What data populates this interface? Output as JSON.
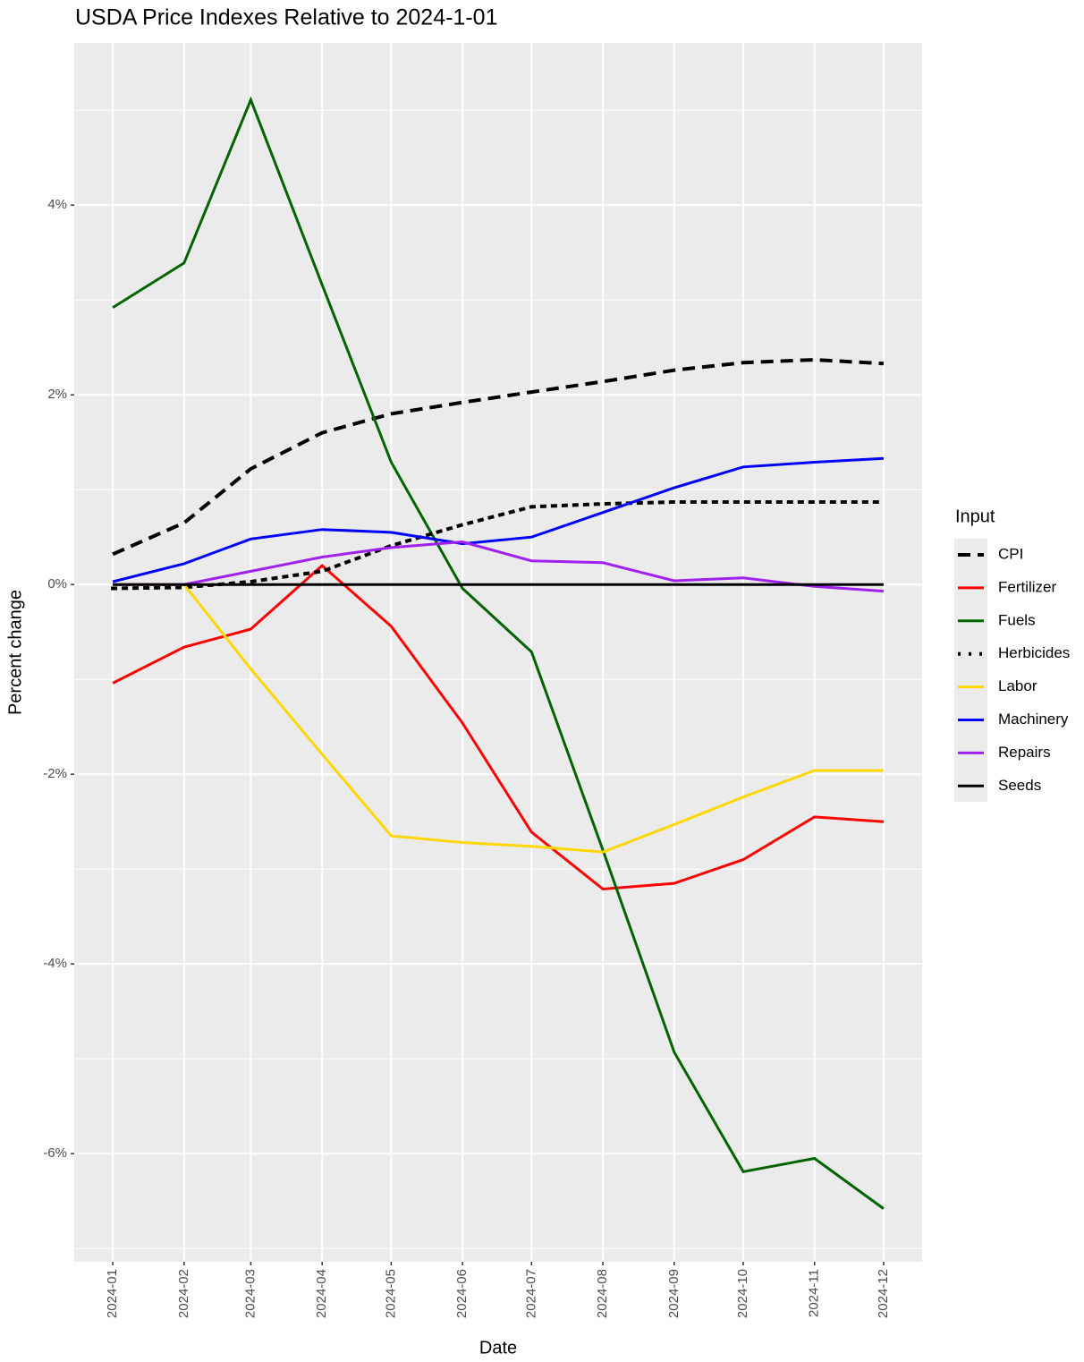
{
  "chart_data": {
    "type": "line",
    "title": "USDA Price Indexes Relative to  2024-1-01",
    "x_label": "Date",
    "y_label": "Percent change",
    "legend_title": "Input",
    "legend_position": "right",
    "grid": true,
    "x": [
      "2024-01",
      "2024-02",
      "2024-03",
      "2024-04",
      "2024-05",
      "2024-06",
      "2024-07",
      "2024-08",
      "2024-09",
      "2024-10",
      "2024-11",
      "2024-12"
    ],
    "ylim": [
      -7.14,
      5.71
    ],
    "yticks": [
      {
        "value": -6,
        "label": "-6%"
      },
      {
        "value": -4,
        "label": "-4%"
      },
      {
        "value": -2,
        "label": "-2%"
      },
      {
        "value": 0,
        "label": "0%"
      },
      {
        "value": 2,
        "label": "2%"
      },
      {
        "value": 4,
        "label": "4%"
      }
    ],
    "series": [
      {
        "name": "CPI",
        "color": "#000000",
        "dash": "dashed",
        "values": [
          0.32,
          0.65,
          1.22,
          1.6,
          1.8,
          1.92,
          2.03,
          2.14,
          2.26,
          2.34,
          2.37,
          2.33
        ]
      },
      {
        "name": "Fertilizer",
        "color": "#ff0000",
        "dash": "solid",
        "values": [
          -1.04,
          -0.66,
          -0.47,
          0.2,
          -0.44,
          -1.46,
          -2.61,
          -3.21,
          -3.15,
          -2.9,
          -2.45,
          -2.5
        ]
      },
      {
        "name": "Fuels",
        "color": "#006400",
        "dash": "solid",
        "values": [
          2.92,
          3.39,
          5.11,
          3.16,
          1.29,
          -0.04,
          -0.71,
          -2.8,
          -4.93,
          -6.19,
          -6.05,
          -6.58
        ]
      },
      {
        "name": "Herbicides",
        "color": "#000000",
        "dash": "dotted",
        "values": [
          -0.04,
          -0.03,
          0.03,
          0.14,
          0.41,
          0.63,
          0.82,
          0.85,
          0.87,
          0.87,
          0.87,
          0.87
        ]
      },
      {
        "name": "Labor",
        "color": "#ffd700",
        "dash": "solid",
        "values": [
          0,
          0,
          -0.89,
          -1.79,
          -2.65,
          -2.72,
          -2.76,
          -2.82,
          -2.53,
          -2.24,
          -1.96,
          -1.96
        ]
      },
      {
        "name": "Machinery",
        "color": "#0000ff",
        "dash": "solid",
        "values": [
          0.03,
          0.22,
          0.48,
          0.58,
          0.55,
          0.43,
          0.5,
          0.76,
          1.02,
          1.24,
          1.29,
          1.33
        ]
      },
      {
        "name": "Repairs",
        "color": "#a020f0",
        "dash": "solid",
        "values": [
          0,
          0,
          0.14,
          0.29,
          0.39,
          0.45,
          0.25,
          0.23,
          0.04,
          0.07,
          -0.02,
          -0.07
        ]
      },
      {
        "name": "Seeds",
        "color": "#000000",
        "dash": "solid",
        "values": [
          0,
          0,
          0,
          0,
          0,
          0,
          0,
          0,
          0,
          0,
          0,
          0
        ]
      }
    ]
  }
}
